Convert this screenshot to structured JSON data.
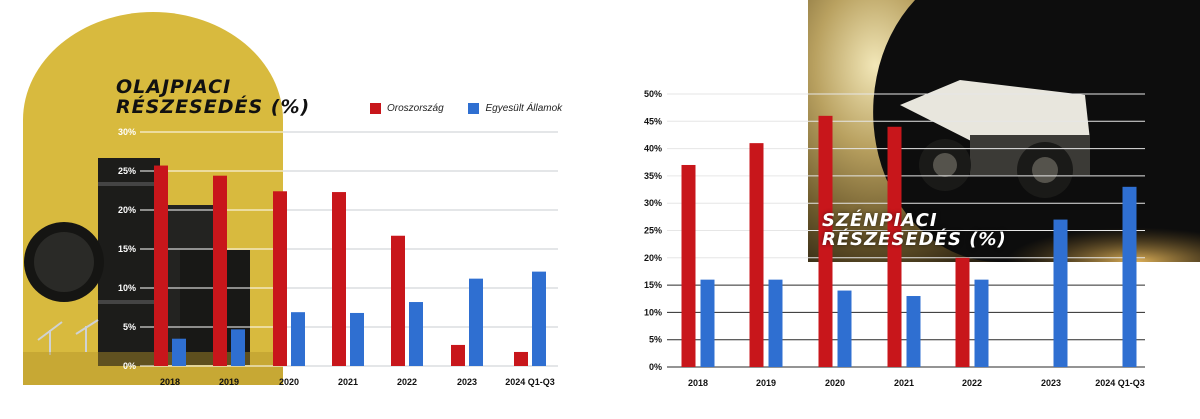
{
  "colors": {
    "russia": "#c8161b",
    "usa": "#2f6fd1",
    "oil_panel": "#d8ba3e",
    "oil_panel_dark": "#b39328"
  },
  "legend": {
    "russia_label": "Oroszország",
    "usa_label": "Egyesült Államok"
  },
  "oil_title": {
    "line1": "OLAJPIACI",
    "line2": "RÉSZESEDÉS (%)"
  },
  "coal_title": {
    "line1": "SZÉNPIACI",
    "line2": "RÉSZESEDÉS (%)"
  },
  "chart_data": [
    {
      "type": "bar",
      "title": "OLAJPIACI RÉSZESEDÉS (%)",
      "categories": [
        "2018",
        "2019",
        "2020",
        "2021",
        "2022",
        "2023",
        "2024 Q1-Q3"
      ],
      "series": [
        {
          "name": "Oroszország",
          "values": [
            25.7,
            24.4,
            22.4,
            22.3,
            16.7,
            2.7,
            1.8
          ]
        },
        {
          "name": "Egyesült Államok",
          "values": [
            3.5,
            4.7,
            6.9,
            6.8,
            8.2,
            11.2,
            12.1
          ]
        }
      ],
      "ylim": [
        0,
        30
      ],
      "yticks": [
        "0%",
        "5%",
        "10%",
        "15%",
        "20%",
        "25%",
        "30%"
      ],
      "grid": true,
      "legend_position": "top-right"
    },
    {
      "type": "bar",
      "title": "SZÉNPIACI RÉSZESEDÉS (%)",
      "categories": [
        "2018",
        "2019",
        "2020",
        "2021",
        "2022",
        "2023",
        "2024 Q1-Q3"
      ],
      "series": [
        {
          "name": "Oroszország",
          "values": [
            37,
            41,
            46,
            44,
            20,
            null,
            null
          ]
        },
        {
          "name": "Egyesült Államok",
          "values": [
            16,
            16,
            14,
            13,
            16,
            27,
            33
          ]
        }
      ],
      "ylim": [
        0,
        50
      ],
      "yticks": [
        "0%",
        "5%",
        "10%",
        "15%",
        "20%",
        "25%",
        "30%",
        "35%",
        "40%",
        "45%",
        "50%"
      ],
      "grid": true
    }
  ]
}
